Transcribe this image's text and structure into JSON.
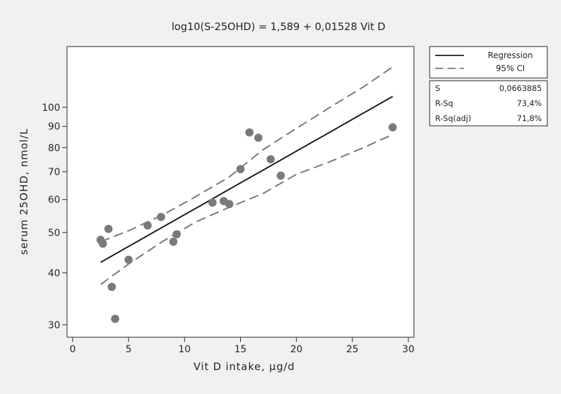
{
  "chart_data": {
    "type": "scatter",
    "title": "log10(S-25OHD) =   1,589 + 0,01528 Vit D",
    "xlabel": "Vit D intake, μg/d",
    "ylabel": "serum 25OHD, nmol/L",
    "xlim": [
      -0.5,
      30.5
    ],
    "ylim": [
      28,
      140
    ],
    "y_scale": "log",
    "x_ticks": [
      0,
      5,
      10,
      15,
      20,
      25,
      30
    ],
    "y_ticks": [
      30,
      40,
      50,
      60,
      70,
      80,
      90,
      100
    ],
    "points": [
      {
        "x": 2.5,
        "y": 48
      },
      {
        "x": 2.7,
        "y": 47
      },
      {
        "x": 3.2,
        "y": 51
      },
      {
        "x": 3.5,
        "y": 37
      },
      {
        "x": 3.8,
        "y": 31
      },
      {
        "x": 5.0,
        "y": 43
      },
      {
        "x": 6.7,
        "y": 52
      },
      {
        "x": 7.9,
        "y": 54.5
      },
      {
        "x": 9.0,
        "y": 47.5
      },
      {
        "x": 9.3,
        "y": 49.5
      },
      {
        "x": 12.5,
        "y": 59
      },
      {
        "x": 13.5,
        "y": 59.5
      },
      {
        "x": 14.0,
        "y": 58.5
      },
      {
        "x": 15.0,
        "y": 71
      },
      {
        "x": 15.8,
        "y": 87
      },
      {
        "x": 16.6,
        "y": 84.5
      },
      {
        "x": 17.7,
        "y": 75
      },
      {
        "x": 18.6,
        "y": 68.5
      },
      {
        "x": 28.6,
        "y": 89.5
      }
    ],
    "regression": {
      "intercept": 1.589,
      "slope": 0.01528,
      "x_range": [
        2.5,
        28.6
      ]
    },
    "ci_lower": [
      {
        "x": 2.5,
        "y": 37.5
      },
      {
        "x": 5,
        "y": 42
      },
      {
        "x": 8,
        "y": 47.5
      },
      {
        "x": 11,
        "y": 53
      },
      {
        "x": 14,
        "y": 57.5
      },
      {
        "x": 17,
        "y": 62
      },
      {
        "x": 20,
        "y": 69
      },
      {
        "x": 23,
        "y": 74
      },
      {
        "x": 26,
        "y": 80
      },
      {
        "x": 28.6,
        "y": 86
      }
    ],
    "ci_upper": [
      {
        "x": 2.5,
        "y": 47.5
      },
      {
        "x": 5,
        "y": 50.5
      },
      {
        "x": 8,
        "y": 55
      },
      {
        "x": 11,
        "y": 61
      },
      {
        "x": 14,
        "y": 68
      },
      {
        "x": 17,
        "y": 79
      },
      {
        "x": 20,
        "y": 89
      },
      {
        "x": 23,
        "y": 100
      },
      {
        "x": 26,
        "y": 112
      },
      {
        "x": 28.6,
        "y": 125
      }
    ],
    "legend": {
      "placement": "right",
      "entries": [
        {
          "label": "Regression",
          "style": "solid"
        },
        {
          "label": "95% CI",
          "style": "dashed"
        }
      ]
    },
    "stats": [
      {
        "name": "S",
        "value": "0,0663885"
      },
      {
        "name": "R-Sq",
        "value": "73,4%"
      },
      {
        "name": "R-Sq(adj)",
        "value": "71,8%"
      }
    ],
    "colors": {
      "background": "#f1f1f1",
      "plot_background": "#ffffff",
      "regression_line": "#1a1a1a",
      "ci_line": "#777777",
      "point": "#7a7a7a"
    }
  }
}
